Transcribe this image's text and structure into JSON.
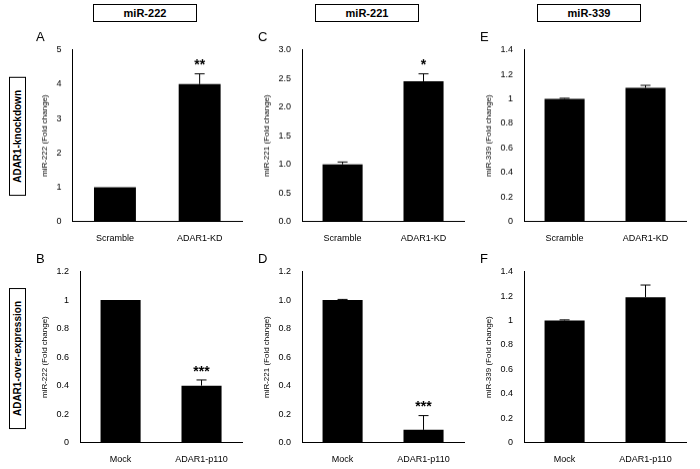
{
  "column_headers": [
    "miR-222",
    "miR-221",
    "miR-339"
  ],
  "row_labels": [
    "ADAR1-knockdown",
    "ADAR1-over-expression"
  ],
  "chart_data": [
    {
      "type": "bar",
      "title": "A",
      "categories": [
        "Scramble",
        "ADAR1-KD"
      ],
      "values": [
        1,
        4.0
      ],
      "errors": [
        0,
        0.3
      ],
      "color": "#000000",
      "y_label": "miR-222 (Fold change)",
      "ylim": [
        0,
        5
      ],
      "yticks": [
        0,
        1,
        2,
        3,
        4,
        5
      ],
      "annotations": [
        {
          "text": "**",
          "category": "ADAR1-KD"
        }
      ]
    },
    {
      "type": "bar",
      "title": "C",
      "categories": [
        "Scramble",
        "ADAR1-KD"
      ],
      "values": [
        1.0,
        2.45
      ],
      "errors": [
        0.04,
        0.13
      ],
      "color": "#000000",
      "y_label": "miR-221 (Fold change)",
      "ylim": [
        0,
        3
      ],
      "yticks": [
        {
          "value": 0,
          "label": "0.0"
        },
        {
          "value": 0.5,
          "label": "0.5"
        },
        {
          "value": 1,
          "label": "1.0"
        },
        {
          "value": 1.5,
          "label": "1.5"
        },
        {
          "value": 2,
          "label": "2.0"
        },
        {
          "value": 2.5,
          "label": "2.5"
        },
        {
          "value": 3,
          "label": "3.0"
        }
      ],
      "annotations": [
        {
          "text": "*",
          "category": "ADAR1-KD"
        }
      ]
    },
    {
      "type": "bar",
      "title": "E",
      "categories": [
        "Scramble",
        "ADAR1-KD"
      ],
      "values": [
        1.0,
        1.09
      ],
      "errors": [
        0.005,
        0.02
      ],
      "color": "#000000",
      "y_label": "miR-339 (Fold change)",
      "ylim": [
        0,
        1.4
      ],
      "yticks": [
        0,
        0.2,
        0.4,
        0.6,
        0.8,
        1,
        1.2,
        1.4
      ]
    },
    {
      "type": "bar",
      "title": "B",
      "categories": [
        "Mock",
        "ADAR1-p110"
      ],
      "values": [
        1.0,
        0.4
      ],
      "errors": [
        0,
        0.04
      ],
      "color": "#000000",
      "y_label": "miR-222 (Fold change)",
      "ylim": [
        0,
        1.2
      ],
      "yticks": [
        0,
        0.2,
        0.4,
        0.6,
        0.8,
        1,
        1.2
      ],
      "annotations": [
        {
          "text": "***",
          "category": "ADAR1-p110"
        }
      ]
    },
    {
      "type": "bar",
      "title": "D",
      "categories": [
        "Mock",
        "ADAR1-p110"
      ],
      "values": [
        1.0,
        0.09
      ],
      "errors": [
        0.005,
        0.1
      ],
      "color": "#000000",
      "y_label": "miR-221 (Fold change)",
      "ylim": [
        0,
        1.2
      ],
      "yticks": [
        {
          "value": 0,
          "label": "0.0"
        },
        {
          "value": 0.2,
          "label": "0.2"
        },
        {
          "value": 0.4,
          "label": "0.4"
        },
        {
          "value": 0.6,
          "label": "0.6"
        },
        {
          "value": 0.8,
          "label": "0.8"
        },
        {
          "value": 1,
          "label": "1.0"
        },
        {
          "value": 1.2,
          "label": "1.2"
        }
      ],
      "annotations": [
        {
          "text": "***",
          "category": "ADAR1-p110"
        }
      ]
    },
    {
      "type": "bar",
      "title": "F",
      "categories": [
        "Mock",
        "ADAR1-p110"
      ],
      "values": [
        1.0,
        1.19
      ],
      "errors": [
        0.005,
        0.1
      ],
      "color": "#000000",
      "y_label": "miR-339 (Fold change)",
      "ylim": [
        0,
        1.4
      ],
      "yticks": [
        0,
        0.2,
        0.4,
        0.6,
        0.8,
        1,
        1.2,
        1.4
      ]
    }
  ]
}
